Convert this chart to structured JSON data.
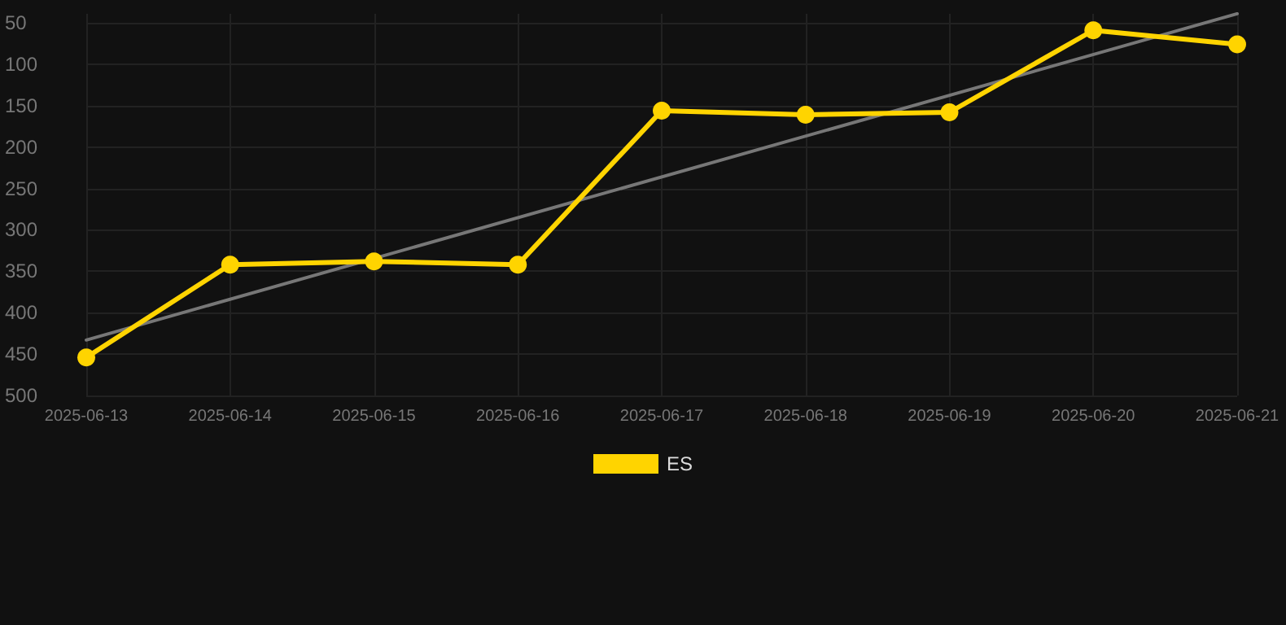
{
  "chart_data": {
    "type": "line",
    "categories": [
      "2025-06-13",
      "2025-06-14",
      "2025-06-15",
      "2025-06-16",
      "2025-06-17",
      "2025-06-18",
      "2025-06-19",
      "2025-06-20",
      "2025-06-21"
    ],
    "series": [
      {
        "name": "ES",
        "color": "#ffd400",
        "values": [
          454,
          342,
          338,
          342,
          156,
          161,
          158,
          59,
          76
        ],
        "marker": "circle"
      },
      {
        "type": "line",
        "color": "#777777",
        "values": [
          433,
          null,
          null,
          null,
          null,
          null,
          null,
          null,
          39
        ],
        "marker": "none"
      }
    ],
    "ylim": [
      500,
      39
    ],
    "yticks": [
      50,
      100,
      150,
      200,
      250,
      300,
      350,
      400,
      450,
      500
    ],
    "grid": true,
    "legend": "bottom"
  }
}
